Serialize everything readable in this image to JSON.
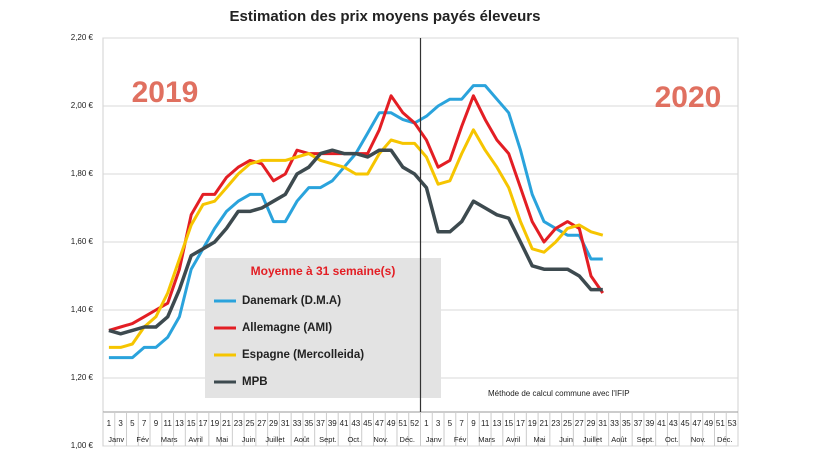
{
  "chart_data": {
    "type": "line",
    "title": "Estimation des prix moyens payés éleveurs",
    "categories": [
      "1",
      "3",
      "5",
      "7",
      "9",
      "11",
      "13",
      "15",
      "17",
      "19",
      "21",
      "23",
      "25",
      "27",
      "29",
      "31",
      "33",
      "35",
      "37",
      "39",
      "41",
      "43",
      "45",
      "47",
      "49",
      "51",
      "52",
      "1",
      "3",
      "5",
      "7",
      "9",
      "11",
      "13",
      "15",
      "17",
      "19",
      "21",
      "23",
      "25",
      "27",
      "29",
      "31",
      "33",
      "35",
      "37",
      "39",
      "41",
      "43",
      "45",
      "47",
      "49",
      "51",
      "53"
    ],
    "x_groups": [
      "Janv",
      "Fév",
      "Mars",
      "Avril",
      "Mai",
      "Juin",
      "Juillet",
      "Août",
      "Sept.",
      "Oct.",
      "Nov.",
      "Déc.",
      "Janv",
      "Fév",
      "Mars",
      "Avril",
      "Mai",
      "Juin",
      "Juillet",
      "Août",
      "Sept.",
      "Oct.",
      "Nov.",
      "Déc."
    ],
    "series": [
      {
        "name": "Danemark (D.M.A)",
        "color": "#2aa3dc",
        "values": [
          1.26,
          1.26,
          1.26,
          1.29,
          1.29,
          1.32,
          1.38,
          1.52,
          1.58,
          1.64,
          1.69,
          1.72,
          1.74,
          1.74,
          1.66,
          1.66,
          1.72,
          1.76,
          1.76,
          1.78,
          1.82,
          1.86,
          1.92,
          1.98,
          1.98,
          1.96,
          1.95,
          1.97,
          2.0,
          2.02,
          2.02,
          2.06,
          2.06,
          2.02,
          1.98,
          1.87,
          1.74,
          1.66,
          1.64,
          1.62,
          1.62,
          1.55,
          1.55,
          null,
          null,
          null,
          null,
          null,
          null,
          null,
          null,
          null,
          null,
          null
        ]
      },
      {
        "name": "Allemagne (AMI)",
        "color": "#e31e24",
        "values": [
          1.34,
          1.35,
          1.36,
          1.38,
          1.4,
          1.42,
          1.52,
          1.68,
          1.74,
          1.74,
          1.79,
          1.82,
          1.84,
          1.83,
          1.78,
          1.8,
          1.87,
          1.86,
          1.86,
          1.86,
          1.86,
          1.86,
          1.86,
          1.93,
          2.03,
          1.98,
          1.95,
          1.9,
          1.82,
          1.84,
          1.94,
          2.03,
          1.96,
          1.9,
          1.86,
          1.76,
          1.66,
          1.6,
          1.64,
          1.66,
          1.64,
          1.5,
          1.45,
          null,
          null,
          null,
          null,
          null,
          null,
          null,
          null,
          null,
          null,
          null
        ]
      },
      {
        "name": "Espagne (Mercolleida)",
        "color": "#f6c500",
        "values": [
          1.29,
          1.29,
          1.3,
          1.35,
          1.38,
          1.45,
          1.55,
          1.65,
          1.71,
          1.72,
          1.76,
          1.8,
          1.83,
          1.84,
          1.84,
          1.84,
          1.85,
          1.86,
          1.84,
          1.83,
          1.82,
          1.8,
          1.8,
          1.86,
          1.9,
          1.89,
          1.89,
          1.85,
          1.77,
          1.78,
          1.86,
          1.93,
          1.87,
          1.82,
          1.76,
          1.66,
          1.58,
          1.57,
          1.6,
          1.64,
          1.65,
          1.63,
          1.62,
          null,
          null,
          null,
          null,
          null,
          null,
          null,
          null,
          null,
          null,
          null
        ]
      },
      {
        "name": "MPB",
        "color": "#3d4a4f",
        "values": [
          1.34,
          1.33,
          1.34,
          1.35,
          1.35,
          1.38,
          1.46,
          1.56,
          1.58,
          1.6,
          1.64,
          1.69,
          1.69,
          1.7,
          1.72,
          1.74,
          1.8,
          1.82,
          1.86,
          1.87,
          1.86,
          1.86,
          1.85,
          1.87,
          1.87,
          1.82,
          1.8,
          1.76,
          1.63,
          1.63,
          1.66,
          1.72,
          1.7,
          1.68,
          1.67,
          1.6,
          1.53,
          1.52,
          1.52,
          1.52,
          1.5,
          1.46,
          1.46,
          null,
          null,
          null,
          null,
          null,
          null,
          null,
          null,
          null,
          null,
          null
        ]
      }
    ],
    "ylim": [
      1.0,
      2.2
    ],
    "yticks": [
      {
        "value": 1.0,
        "label": "1,00 €"
      },
      {
        "value": 1.2,
        "label": "1,20 €"
      },
      {
        "value": 1.4,
        "label": "1,40 €"
      },
      {
        "value": 1.6,
        "label": "1,60 €"
      },
      {
        "value": 1.8,
        "label": "1,80 €"
      },
      {
        "value": 2.0,
        "label": "2,00 €"
      },
      {
        "value": 2.2,
        "label": "2,20 €"
      }
    ],
    "grid": true,
    "legend_title": "Moyenne à 31 semaine(s)",
    "annotations": [
      "2019",
      "2020",
      "Méthode de calcul commune avec l'IFIP"
    ]
  }
}
